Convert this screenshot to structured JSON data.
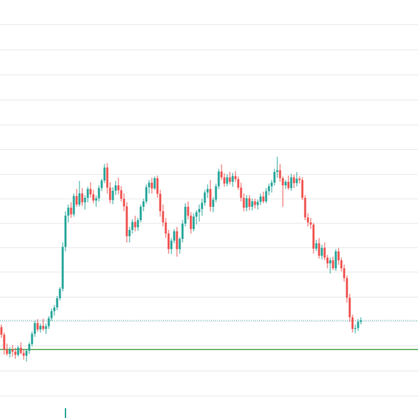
{
  "chart_data": {
    "type": "candlestick",
    "title": "",
    "xlabel": "",
    "ylabel": "",
    "y_axis_visible": false,
    "x_axis_visible": false,
    "grid": "horizontal",
    "ylim": [
      0,
      100
    ],
    "colors": {
      "up": "#26a69a",
      "down": "#ef5350",
      "grid": "#e9e9ec",
      "support_line": "#43a047",
      "price_line": "#26a69a",
      "volume": "#26a69a"
    },
    "support_level": 31,
    "last_price": 37.5,
    "volume_marker": {
      "index": 23
    },
    "candles": [
      [
        36.0,
        36.6,
        33.6,
        34.3
      ],
      [
        34.3,
        34.8,
        29.8,
        31.0
      ],
      [
        31.0,
        32.3,
        29.6,
        30.0
      ],
      [
        30.0,
        31.5,
        29.2,
        30.9
      ],
      [
        30.9,
        32.0,
        29.4,
        30.5
      ],
      [
        30.5,
        31.4,
        28.9,
        29.8
      ],
      [
        29.8,
        31.8,
        29.4,
        31.4
      ],
      [
        31.4,
        32.6,
        29.9,
        30.2
      ],
      [
        30.2,
        31.0,
        28.7,
        29.6
      ],
      [
        29.6,
        31.0,
        28.3,
        30.7
      ],
      [
        30.7,
        32.6,
        30.0,
        32.2
      ],
      [
        32.2,
        35.0,
        31.7,
        34.5
      ],
      [
        34.5,
        37.4,
        33.8,
        36.9
      ],
      [
        36.9,
        37.8,
        35.0,
        35.5
      ],
      [
        35.5,
        36.8,
        34.8,
        36.3
      ],
      [
        36.3,
        37.9,
        35.2,
        35.6
      ],
      [
        35.6,
        36.8,
        34.5,
        36.2
      ],
      [
        36.2,
        38.5,
        35.6,
        38.0
      ],
      [
        38.0,
        40.2,
        37.4,
        39.6
      ],
      [
        39.6,
        41.0,
        38.6,
        40.4
      ],
      [
        40.4,
        43.0,
        39.8,
        42.5
      ],
      [
        42.5,
        45.0,
        42.0,
        44.6
      ],
      [
        44.6,
        55.0,
        44.0,
        54.0
      ],
      [
        54.0,
        62.0,
        53.0,
        61.0
      ],
      [
        61.0,
        63.5,
        59.5,
        62.8
      ],
      [
        62.8,
        64.0,
        60.5,
        61.3
      ],
      [
        61.3,
        66.0,
        60.8,
        65.4
      ],
      [
        65.4,
        67.0,
        63.0,
        63.5
      ],
      [
        63.5,
        68.8,
        63.0,
        66.0
      ],
      [
        66.0,
        67.2,
        63.2,
        64.0
      ],
      [
        64.0,
        65.6,
        62.4,
        65.0
      ],
      [
        65.0,
        67.5,
        64.0,
        67.0
      ],
      [
        67.0,
        68.5,
        65.0,
        65.8
      ],
      [
        65.8,
        66.8,
        63.8,
        64.4
      ],
      [
        64.4,
        65.5,
        63.0,
        64.9
      ],
      [
        64.9,
        67.8,
        64.2,
        67.2
      ],
      [
        67.2,
        69.3,
        66.5,
        68.9
      ],
      [
        68.9,
        72.6,
        68.3,
        71.8
      ],
      [
        71.8,
        72.8,
        66.0,
        67.3
      ],
      [
        67.3,
        68.5,
        63.8,
        64.5
      ],
      [
        64.5,
        67.4,
        63.6,
        66.6
      ],
      [
        66.6,
        68.8,
        65.6,
        67.8
      ],
      [
        67.8,
        69.5,
        65.8,
        66.7
      ],
      [
        66.7,
        67.6,
        64.2,
        64.8
      ],
      [
        64.8,
        66.0,
        62.0,
        63.1
      ],
      [
        63.1,
        64.0,
        55.0,
        56.4
      ],
      [
        56.4,
        58.5,
        55.0,
        57.8
      ],
      [
        57.8,
        60.2,
        57.0,
        59.6
      ],
      [
        59.6,
        61.0,
        57.5,
        58.4
      ],
      [
        58.4,
        60.5,
        57.6,
        60.0
      ],
      [
        60.0,
        63.5,
        59.5,
        63.0
      ],
      [
        63.0,
        64.8,
        62.0,
        64.2
      ],
      [
        64.2,
        68.0,
        63.7,
        67.4
      ],
      [
        67.4,
        69.0,
        66.0,
        68.4
      ],
      [
        68.4,
        69.5,
        66.0,
        67.1
      ],
      [
        67.1,
        69.8,
        66.8,
        69.4
      ],
      [
        69.4,
        70.0,
        65.0,
        65.9
      ],
      [
        65.9,
        66.8,
        60.8,
        62.0
      ],
      [
        62.0,
        63.5,
        58.6,
        59.5
      ],
      [
        59.5,
        60.5,
        56.0,
        57.0
      ],
      [
        57.0,
        57.8,
        52.5,
        53.5
      ],
      [
        53.5,
        56.0,
        52.4,
        55.4
      ],
      [
        55.4,
        58.0,
        54.8,
        57.5
      ],
      [
        57.5,
        58.5,
        51.8,
        53.5
      ],
      [
        53.5,
        56.2,
        52.5,
        55.8
      ],
      [
        55.8,
        60.0,
        55.0,
        59.2
      ],
      [
        59.2,
        63.8,
        58.6,
        63.0
      ],
      [
        63.0,
        64.2,
        60.2,
        61.0
      ],
      [
        61.0,
        61.8,
        57.0,
        58.0
      ],
      [
        58.0,
        61.5,
        57.5,
        60.8
      ],
      [
        60.8,
        62.2,
        59.0,
        61.8
      ],
      [
        61.8,
        63.5,
        59.7,
        62.5
      ],
      [
        62.5,
        64.8,
        61.0,
        63.9
      ],
      [
        63.9,
        66.8,
        63.2,
        66.2
      ],
      [
        66.2,
        68.0,
        65.0,
        67.0
      ],
      [
        67.0,
        69.0,
        62.0,
        63.0
      ],
      [
        63.0,
        65.2,
        61.8,
        64.6
      ],
      [
        64.6,
        68.2,
        64.0,
        67.6
      ],
      [
        67.6,
        71.5,
        67.0,
        70.9
      ],
      [
        70.9,
        72.5,
        69.0,
        69.6
      ],
      [
        69.6,
        70.5,
        67.5,
        68.2
      ],
      [
        68.2,
        70.3,
        67.6,
        69.6
      ],
      [
        69.6,
        70.8,
        68.0,
        68.6
      ],
      [
        68.6,
        70.6,
        67.5,
        69.9
      ],
      [
        69.9,
        71.0,
        68.6,
        69.2
      ],
      [
        69.2,
        69.8,
        66.8,
        67.3
      ],
      [
        67.3,
        68.4,
        64.2,
        65.0
      ],
      [
        65.0,
        66.0,
        62.0,
        62.8
      ],
      [
        62.8,
        65.6,
        62.0,
        64.9
      ],
      [
        64.9,
        65.6,
        62.2,
        63.0
      ],
      [
        63.0,
        64.8,
        62.2,
        64.2
      ],
      [
        64.2,
        64.8,
        62.6,
        63.4
      ],
      [
        63.4,
        64.6,
        62.4,
        64.1
      ],
      [
        64.1,
        66.0,
        63.4,
        65.3
      ],
      [
        65.3,
        66.4,
        63.8,
        64.2
      ],
      [
        64.2,
        67.2,
        63.8,
        66.5
      ],
      [
        66.5,
        68.2,
        65.6,
        67.6
      ],
      [
        67.6,
        69.0,
        66.2,
        68.4
      ],
      [
        68.4,
        71.5,
        67.8,
        70.8
      ],
      [
        70.8,
        74.2,
        69.5,
        71.2
      ],
      [
        71.2,
        72.6,
        68.6,
        69.4
      ],
      [
        69.4,
        69.8,
        63.0,
        67.8
      ],
      [
        67.8,
        69.0,
        67.0,
        68.6
      ],
      [
        68.6,
        70.0,
        66.8,
        67.2
      ],
      [
        67.2,
        70.4,
        66.6,
        69.6
      ],
      [
        69.6,
        70.2,
        67.2,
        68.3
      ],
      [
        68.3,
        70.8,
        67.6,
        69.3
      ],
      [
        69.3,
        69.8,
        68.2,
        69.0
      ],
      [
        69.0,
        69.6,
        64.5,
        65.0
      ],
      [
        65.0,
        65.6,
        60.0,
        60.6
      ],
      [
        60.6,
        61.5,
        58.6,
        59.5
      ],
      [
        59.5,
        60.5,
        58.0,
        59.0
      ],
      [
        59.0,
        59.4,
        52.5,
        53.6
      ],
      [
        53.6,
        55.6,
        53.0,
        54.8
      ],
      [
        54.8,
        56.0,
        51.4,
        52.0
      ],
      [
        52.0,
        54.5,
        51.2,
        53.8
      ],
      [
        53.8,
        55.0,
        51.0,
        51.6
      ],
      [
        51.6,
        52.2,
        49.2,
        50.3
      ],
      [
        50.3,
        51.6,
        48.0,
        51.0
      ],
      [
        51.0,
        51.8,
        48.8,
        49.2
      ],
      [
        49.2,
        53.5,
        48.6,
        53.0
      ],
      [
        53.0,
        53.8,
        50.0,
        51.0
      ],
      [
        51.0,
        51.6,
        48.5,
        49.2
      ],
      [
        49.2,
        50.0,
        46.2,
        47.0
      ],
      [
        47.0,
        47.6,
        41.5,
        42.6
      ],
      [
        42.6,
        43.5,
        37.2,
        38.2
      ],
      [
        38.2,
        38.8,
        34.8,
        35.6
      ],
      [
        35.6,
        36.6,
        34.6,
        35.8
      ],
      [
        35.8,
        37.8,
        35.2,
        37.2
      ],
      [
        37.2,
        38.2,
        36.6,
        37.5
      ]
    ]
  }
}
